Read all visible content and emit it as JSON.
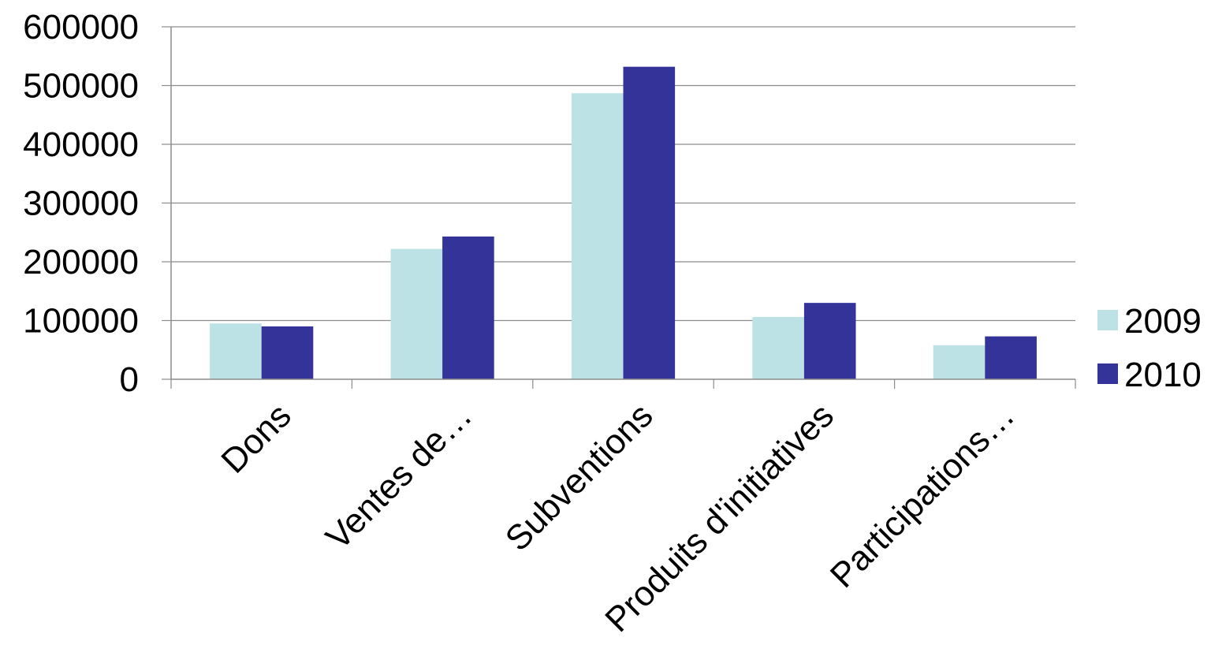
{
  "chart_data": {
    "type": "bar",
    "categories": [
      "Dons",
      "Ventes de…",
      "Subventions",
      "Produits d'initiatives",
      "Participations…"
    ],
    "series": [
      {
        "name": "2009",
        "values": [
          95000,
          222000,
          487000,
          106000,
          58000
        ],
        "color": "#BDE2E5"
      },
      {
        "name": "2010",
        "values": [
          90000,
          243000,
          532000,
          130000,
          73000
        ],
        "color": "#333399"
      }
    ],
    "title": "",
    "xlabel": "",
    "ylabel": "",
    "ylim": [
      0,
      600000
    ],
    "yticks": [
      "0",
      "100000",
      "200000",
      "300000",
      "400000",
      "500000",
      "600000"
    ],
    "grid": true,
    "legend_position": "right"
  }
}
